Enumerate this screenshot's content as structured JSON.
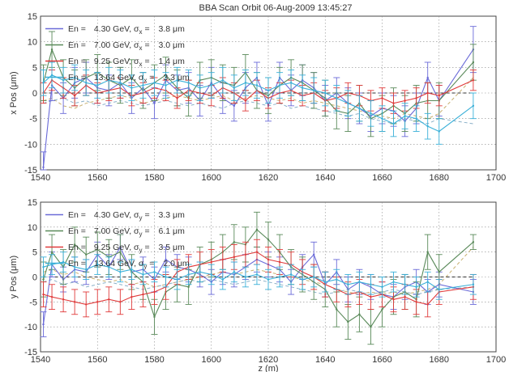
{
  "figure": {
    "title": "BBA Scan Orbit 06-Aug-2009 13:45:27"
  },
  "chart_data": [
    {
      "type": "line",
      "title": "BBA Scan Orbit 06-Aug-2009 13:45:27",
      "xlabel": "",
      "ylabel": "x Pos (μm)",
      "xlim": [
        1540,
        1700
      ],
      "ylim": [
        -15,
        15
      ],
      "xticks": [
        1540,
        1560,
        1580,
        1600,
        1620,
        1640,
        1660,
        1680,
        1700
      ],
      "yticks": [
        -15,
        -10,
        -5,
        0,
        5,
        10,
        15
      ],
      "grid": true,
      "legend_position": "top-left",
      "legend": [
        {
          "en": "En =",
          "energy": "4.30 GeV,",
          "sigma": "σ",
          "sub": "x",
          "eq": "=",
          "rms": "3.8 μm",
          "color": "#6a6ad8"
        },
        {
          "en": "En =",
          "energy": "7.00 GeV,",
          "sigma": "σ",
          "sub": "x",
          "eq": "=",
          "rms": "3.0 μm",
          "color": "#5a8a5a"
        },
        {
          "en": "En =",
          "energy": "9.25 GeV,",
          "sigma": "σ",
          "sub": "x",
          "eq": "=",
          "rms": "1.4 μm",
          "color": "#e03a3a"
        },
        {
          "en": "En =",
          "energy": "13.64 GeV,",
          "sigma": "σ",
          "sub": "x",
          "eq": "=",
          "rms": "3.3 μm",
          "color": "#3ab0d8"
        }
      ],
      "x": [
        1541,
        1544,
        1548,
        1552,
        1556,
        1560,
        1564,
        1568,
        1572,
        1576,
        1580,
        1584,
        1588,
        1592,
        1596,
        1600,
        1604,
        1608,
        1612,
        1616,
        1620,
        1624,
        1628,
        1632,
        1636,
        1640,
        1644,
        1648,
        1652,
        1656,
        1660,
        1664,
        1668,
        1672,
        1676,
        1680,
        1692
      ],
      "series": [
        {
          "values": [
            -14.5,
            1.5,
            -1,
            2,
            3,
            1,
            0.5,
            2,
            -1,
            1,
            -2,
            2.5,
            0.5,
            1,
            -1.5,
            2,
            -1,
            -2.5,
            1,
            3,
            -2.5,
            3,
            0.5,
            2.5,
            1,
            -1.5,
            0,
            -2,
            -3,
            -4.5,
            -3,
            -3.5,
            -5.5,
            -3,
            3,
            -1.5,
            8.5
          ],
          "error": [
            3,
            3,
            3,
            3,
            3,
            3,
            3,
            3,
            3,
            3,
            3,
            3,
            3,
            3,
            3,
            3,
            3,
            3,
            3,
            3,
            3,
            3,
            3,
            3,
            3,
            3,
            3,
            3,
            3,
            3,
            3,
            3,
            3,
            3,
            3,
            3,
            4.5
          ]
        },
        {
          "values": [
            2,
            8.5,
            3,
            1,
            3,
            4,
            2.5,
            1.5,
            3,
            0.5,
            2,
            3.5,
            1,
            -1,
            2.5,
            3,
            2,
            1.5,
            4,
            0.5,
            -0.5,
            1.5,
            3,
            2,
            0.5,
            -1,
            -3.5,
            -4,
            -2,
            -5,
            -4,
            -2.5,
            -4,
            -2,
            -1.5,
            -1.5,
            6
          ],
          "error": [
            3.5,
            3.5,
            3.5,
            3.5,
            3.5,
            3.5,
            3.5,
            3.5,
            3.5,
            3.5,
            3.5,
            3.5,
            3.5,
            3.5,
            3.5,
            3.5,
            3.5,
            3.5,
            3.5,
            3.5,
            3.5,
            3.5,
            3.5,
            3.5,
            3.5,
            3.5,
            3.5,
            3.5,
            3.5,
            3.5,
            3.5,
            3.5,
            3.5,
            3.5,
            3.5,
            3.5,
            3.5
          ]
        },
        {
          "values": [
            0,
            2.5,
            1,
            -0.5,
            1.5,
            0,
            0.5,
            1,
            -0.5,
            0,
            1,
            0.5,
            -1,
            0.5,
            0,
            -0.5,
            1,
            0,
            -1.5,
            0.5,
            -1,
            0,
            0.5,
            -0.5,
            0,
            -1.5,
            -1,
            0,
            -0.5,
            -1.5,
            -1,
            -2,
            -1.5,
            -1,
            0,
            -0.5,
            2.5
          ],
          "error": [
            2,
            2,
            2,
            2,
            2,
            2,
            2,
            2,
            2,
            2,
            2,
            2,
            2,
            2,
            2,
            2,
            2,
            2,
            2,
            2,
            2,
            2,
            2,
            2,
            2,
            2,
            2,
            2,
            2,
            2,
            2,
            2,
            2,
            2,
            2,
            2,
            2
          ]
        },
        {
          "values": [
            2,
            3.5,
            2.5,
            3,
            2,
            1.5,
            2.5,
            2,
            1,
            1.5,
            2,
            1.5,
            2.5,
            2,
            1,
            1.5,
            2.5,
            1,
            2,
            1.5,
            0.5,
            1.5,
            2,
            1,
            0.5,
            0,
            -1,
            -2,
            -3,
            -4,
            -5,
            -6,
            -4.5,
            -5,
            -6.5,
            -7.5,
            -2.5
          ],
          "error": [
            2.5,
            2.5,
            2.5,
            2.5,
            2.5,
            2.5,
            2.5,
            2.5,
            2.5,
            2.5,
            2.5,
            2.5,
            2.5,
            2.5,
            2.5,
            2.5,
            2.5,
            2.5,
            2.5,
            2.5,
            2.5,
            2.5,
            2.5,
            2.5,
            2.5,
            2.5,
            2.5,
            2.5,
            2.5,
            2.5,
            2.5,
            2.5,
            2.5,
            2.5,
            2.5,
            2.5,
            2.5
          ]
        }
      ],
      "dashed": [
        {
          "color": "#c8b070",
          "values": [
            -1.5,
            -1,
            -2.5,
            -3,
            -2,
            -1.5,
            -1,
            -0.5,
            -1,
            -2,
            -1.5,
            -1,
            -0.5,
            -1,
            -1.5,
            -1,
            -0.5,
            -1.5,
            -1,
            -0.5,
            -1,
            -1.5,
            -1,
            -2,
            -1.5,
            -2,
            -2.5,
            -3,
            -3.5,
            -4,
            -4.5,
            -5,
            -4,
            -4.5,
            -5,
            -4,
            3
          ]
        },
        {
          "color": "#8ab0c8",
          "values": [
            -2,
            -1.5,
            -1,
            -2,
            -1.5,
            -2.5,
            -2,
            -1.5,
            -2,
            -2.5,
            -2,
            -1.5,
            -2,
            -2.5,
            -2,
            -2.5,
            -3,
            -2,
            -1.5,
            -2,
            -2.5,
            -2,
            -3,
            -2.5,
            -3,
            -3.5,
            -4,
            -4.5,
            -4,
            -5,
            -5.5,
            -6,
            -5,
            -5.5,
            -6,
            -5,
            -6
          ]
        },
        {
          "color": "#333333",
          "values": [
            0,
            0,
            0,
            0,
            0,
            0,
            0,
            0,
            0,
            0,
            0,
            0,
            0,
            0,
            0,
            0,
            0,
            0,
            0,
            0,
            0,
            0,
            0,
            0,
            0,
            0,
            0,
            0,
            0,
            0,
            0,
            0,
            0,
            0,
            0,
            0,
            0
          ]
        }
      ]
    },
    {
      "type": "line",
      "title": "",
      "xlabel": "z (m)",
      "ylabel": "y Pos (μm)",
      "xlim": [
        1540,
        1700
      ],
      "ylim": [
        -15,
        15
      ],
      "xticks": [
        1540,
        1560,
        1580,
        1600,
        1620,
        1640,
        1660,
        1680,
        1700
      ],
      "yticks": [
        -15,
        -10,
        -5,
        0,
        5,
        10,
        15
      ],
      "grid": true,
      "legend_position": "top-left",
      "legend": [
        {
          "en": "En =",
          "energy": "4.30 GeV,",
          "sigma": "σ",
          "sub": "y",
          "eq": "=",
          "rms": "3.3 μm",
          "color": "#6a6ad8"
        },
        {
          "en": "En =",
          "energy": "7.00 GeV,",
          "sigma": "σ",
          "sub": "y",
          "eq": "=",
          "rms": "6.1 μm",
          "color": "#5a8a5a"
        },
        {
          "en": "En =",
          "energy": "9.25 GeV,",
          "sigma": "σ",
          "sub": "y",
          "eq": "=",
          "rms": "3.5 μm",
          "color": "#e03a3a"
        },
        {
          "en": "En =",
          "energy": "13.64 GeV,",
          "sigma": "σ",
          "sub": "y",
          "eq": "=",
          "rms": "2.0 μm",
          "color": "#3ab0d8"
        }
      ],
      "x": [
        1541,
        1544,
        1548,
        1552,
        1556,
        1560,
        1564,
        1568,
        1572,
        1576,
        1580,
        1584,
        1588,
        1592,
        1596,
        1600,
        1604,
        1608,
        1612,
        1616,
        1620,
        1624,
        1628,
        1632,
        1636,
        1640,
        1644,
        1648,
        1652,
        1656,
        1660,
        1664,
        1668,
        1672,
        1676,
        1680,
        1692
      ],
      "series": [
        {
          "values": [
            -9.5,
            2.5,
            -0.5,
            1.5,
            1,
            4.5,
            2,
            6,
            1,
            1.5,
            -0.5,
            3.5,
            2,
            1.5,
            0.5,
            -1,
            1,
            0.5,
            2,
            3.5,
            2.5,
            1.5,
            -1,
            2,
            4.5,
            -1.5,
            1,
            -2.5,
            -1,
            -2,
            -3.5,
            -4,
            -2,
            -1,
            -3,
            -1.5,
            -3
          ],
          "error": [
            2.5,
            2.5,
            2.5,
            2.5,
            2.5,
            2.5,
            2.5,
            2.5,
            2.5,
            2.5,
            2.5,
            2.5,
            2.5,
            2.5,
            2.5,
            2.5,
            2.5,
            2.5,
            2.5,
            2.5,
            2.5,
            2.5,
            2.5,
            2.5,
            2.5,
            2.5,
            2.5,
            2.5,
            2.5,
            2.5,
            2.5,
            2.5,
            2.5,
            2.5,
            2.5,
            2.5,
            2.5
          ]
        },
        {
          "values": [
            -0.5,
            5,
            2,
            6.5,
            4.5,
            5.5,
            4,
            5,
            1,
            -1,
            -8,
            -3,
            -1.5,
            -2,
            2.5,
            3.5,
            5,
            7,
            6.5,
            9.5,
            7.5,
            5,
            2,
            0.5,
            -1,
            -2.5,
            -6.5,
            -9,
            -7.5,
            -10,
            -6.5,
            -4,
            -3,
            -4.5,
            5,
            1,
            7
          ],
          "error": [
            3.5,
            3.5,
            3.5,
            3.5,
            3.5,
            3.5,
            3.5,
            3.5,
            3.5,
            3.5,
            3.5,
            3.5,
            3.5,
            3.5,
            3.5,
            3.5,
            3.5,
            3.5,
            3.5,
            3.5,
            3.5,
            3.5,
            3.5,
            3.5,
            3.5,
            3.5,
            3.5,
            3.5,
            3.5,
            3.5,
            3.5,
            3.5,
            3.5,
            3.5,
            3.5,
            3.5,
            1.5
          ]
        },
        {
          "values": [
            -3.5,
            -4,
            -4.5,
            -5,
            -5.5,
            -5,
            -4.5,
            -5,
            -4,
            -3.5,
            -3,
            -2,
            1,
            2,
            2.5,
            3,
            3.5,
            4,
            4.5,
            5,
            3.5,
            3,
            2.5,
            1,
            0,
            -1.5,
            -2.5,
            -3.5,
            -3,
            -4,
            -3.5,
            -4.5,
            -4,
            -5,
            -5.5,
            -3,
            -2
          ],
          "error": [
            2.5,
            2.5,
            2.5,
            2.5,
            2.5,
            2.5,
            2.5,
            2.5,
            2.5,
            2.5,
            2.5,
            2.5,
            2.5,
            2.5,
            2.5,
            2.5,
            2.5,
            2.5,
            2.5,
            2.5,
            2.5,
            2.5,
            2.5,
            2.5,
            2.5,
            2.5,
            2.5,
            2.5,
            2.5,
            2.5,
            2.5,
            2.5,
            2.5,
            2.5,
            2.5,
            2.5,
            2.5
          ]
        },
        {
          "values": [
            2,
            2.5,
            3,
            2,
            1.5,
            2.5,
            2,
            1,
            1.5,
            0.5,
            1,
            0,
            -0.5,
            0.5,
            1,
            0.5,
            -0.5,
            1,
            0,
            0.5,
            -0.5,
            0,
            0.5,
            -0.5,
            0,
            -1,
            -0.5,
            -1.5,
            -1,
            -1.5,
            -2,
            -1,
            -1.5,
            -2,
            -1,
            -2.5,
            -1.5
          ],
          "error": [
            2,
            2,
            2,
            2,
            2,
            2,
            2,
            2,
            2,
            2,
            2,
            2,
            2,
            2,
            2,
            2,
            2,
            2,
            2,
            2,
            2,
            2,
            2,
            2,
            2,
            2,
            2,
            2,
            2,
            2,
            2,
            2,
            2,
            2,
            2,
            2,
            2
          ]
        }
      ],
      "dashed": [
        {
          "color": "#c8b070",
          "values": [
            1,
            1.5,
            0.5,
            1,
            0,
            -0.5,
            -1,
            -0.5,
            -1.5,
            -1,
            -2,
            -1.5,
            -1,
            -0.5,
            0,
            0.5,
            1,
            0.5,
            1,
            1.5,
            1,
            0.5,
            0,
            -0.5,
            -1,
            -1.5,
            -2.5,
            -3,
            -3.5,
            -3,
            -3.5,
            -3,
            -3.5,
            -3,
            -2.5,
            -1.5,
            6
          ]
        },
        {
          "color": "#8ab0c8",
          "values": [
            -1,
            -0.5,
            -1.5,
            -1,
            -2,
            -1.5,
            -1,
            -1.5,
            -2,
            -2.5,
            -2,
            -1.5,
            -1,
            -0.5,
            -1,
            -0.5,
            -1,
            -1.5,
            -1,
            -0.5,
            -1,
            -1.5,
            -2,
            -2.5,
            -3,
            -3.5,
            -3,
            -2.5,
            -3,
            -3.5,
            -3,
            -2.5,
            -3,
            -3.5,
            -3,
            -2.5,
            -2
          ]
        },
        {
          "color": "#333333",
          "values": [
            0,
            0,
            0,
            0,
            0,
            0,
            0,
            0,
            0,
            0,
            0,
            0,
            0,
            0,
            0,
            0,
            0,
            0,
            0,
            0,
            0,
            0,
            0,
            0,
            0,
            0,
            0,
            0,
            0,
            0,
            0,
            0,
            0,
            0,
            0,
            0,
            0
          ]
        }
      ]
    }
  ]
}
